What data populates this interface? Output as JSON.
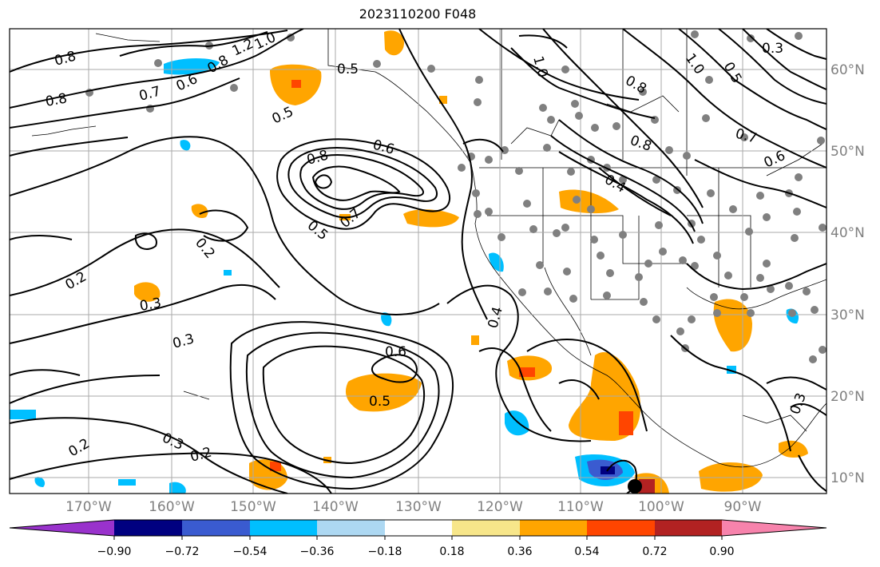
{
  "title": "2023110200 F048",
  "map": {
    "lon_labels": [
      "170°W",
      "160°W",
      "150°W",
      "140°W",
      "130°W",
      "120°W",
      "110°W",
      "100°W",
      "90°W"
    ],
    "lat_labels": [
      "60°N",
      "50°N",
      "40°N",
      "30°N",
      "20°N",
      "10°N"
    ],
    "contour_labels": [
      "0.8",
      "0.8",
      "0.7",
      "0.6",
      "0.8",
      "1.2",
      "1.0",
      "0.5",
      "0.5",
      "0.8",
      "0.6",
      "0.5",
      "0.7",
      "0.2",
      "0.2",
      "0.3",
      "0.3",
      "0.6",
      "0.5",
      "0.4",
      "0.3",
      "0.2",
      "0.2",
      "1.0",
      "0.8",
      "0.8",
      "0.4",
      "0.7",
      "0.6",
      "0.5",
      "1.0",
      "0.3",
      "0.3"
    ]
  },
  "colorbar": {
    "colors": [
      "#9932cc",
      "#000080",
      "#3a5bd0",
      "#00bfff",
      "#add8f2",
      "#ffffff",
      "#f7e68a",
      "#ffa500",
      "#ff4500",
      "#b22222",
      "#f783ac"
    ],
    "tick_labels": [
      "−0.90",
      "−0.72",
      "−0.54",
      "−0.36",
      "−0.18",
      "0.18",
      "0.36",
      "0.54",
      "0.72",
      "0.90"
    ]
  },
  "colors": {
    "gridline": "#aaaaaa",
    "contour": "#000000",
    "station": "#808080",
    "axis_label": "#808080"
  }
}
